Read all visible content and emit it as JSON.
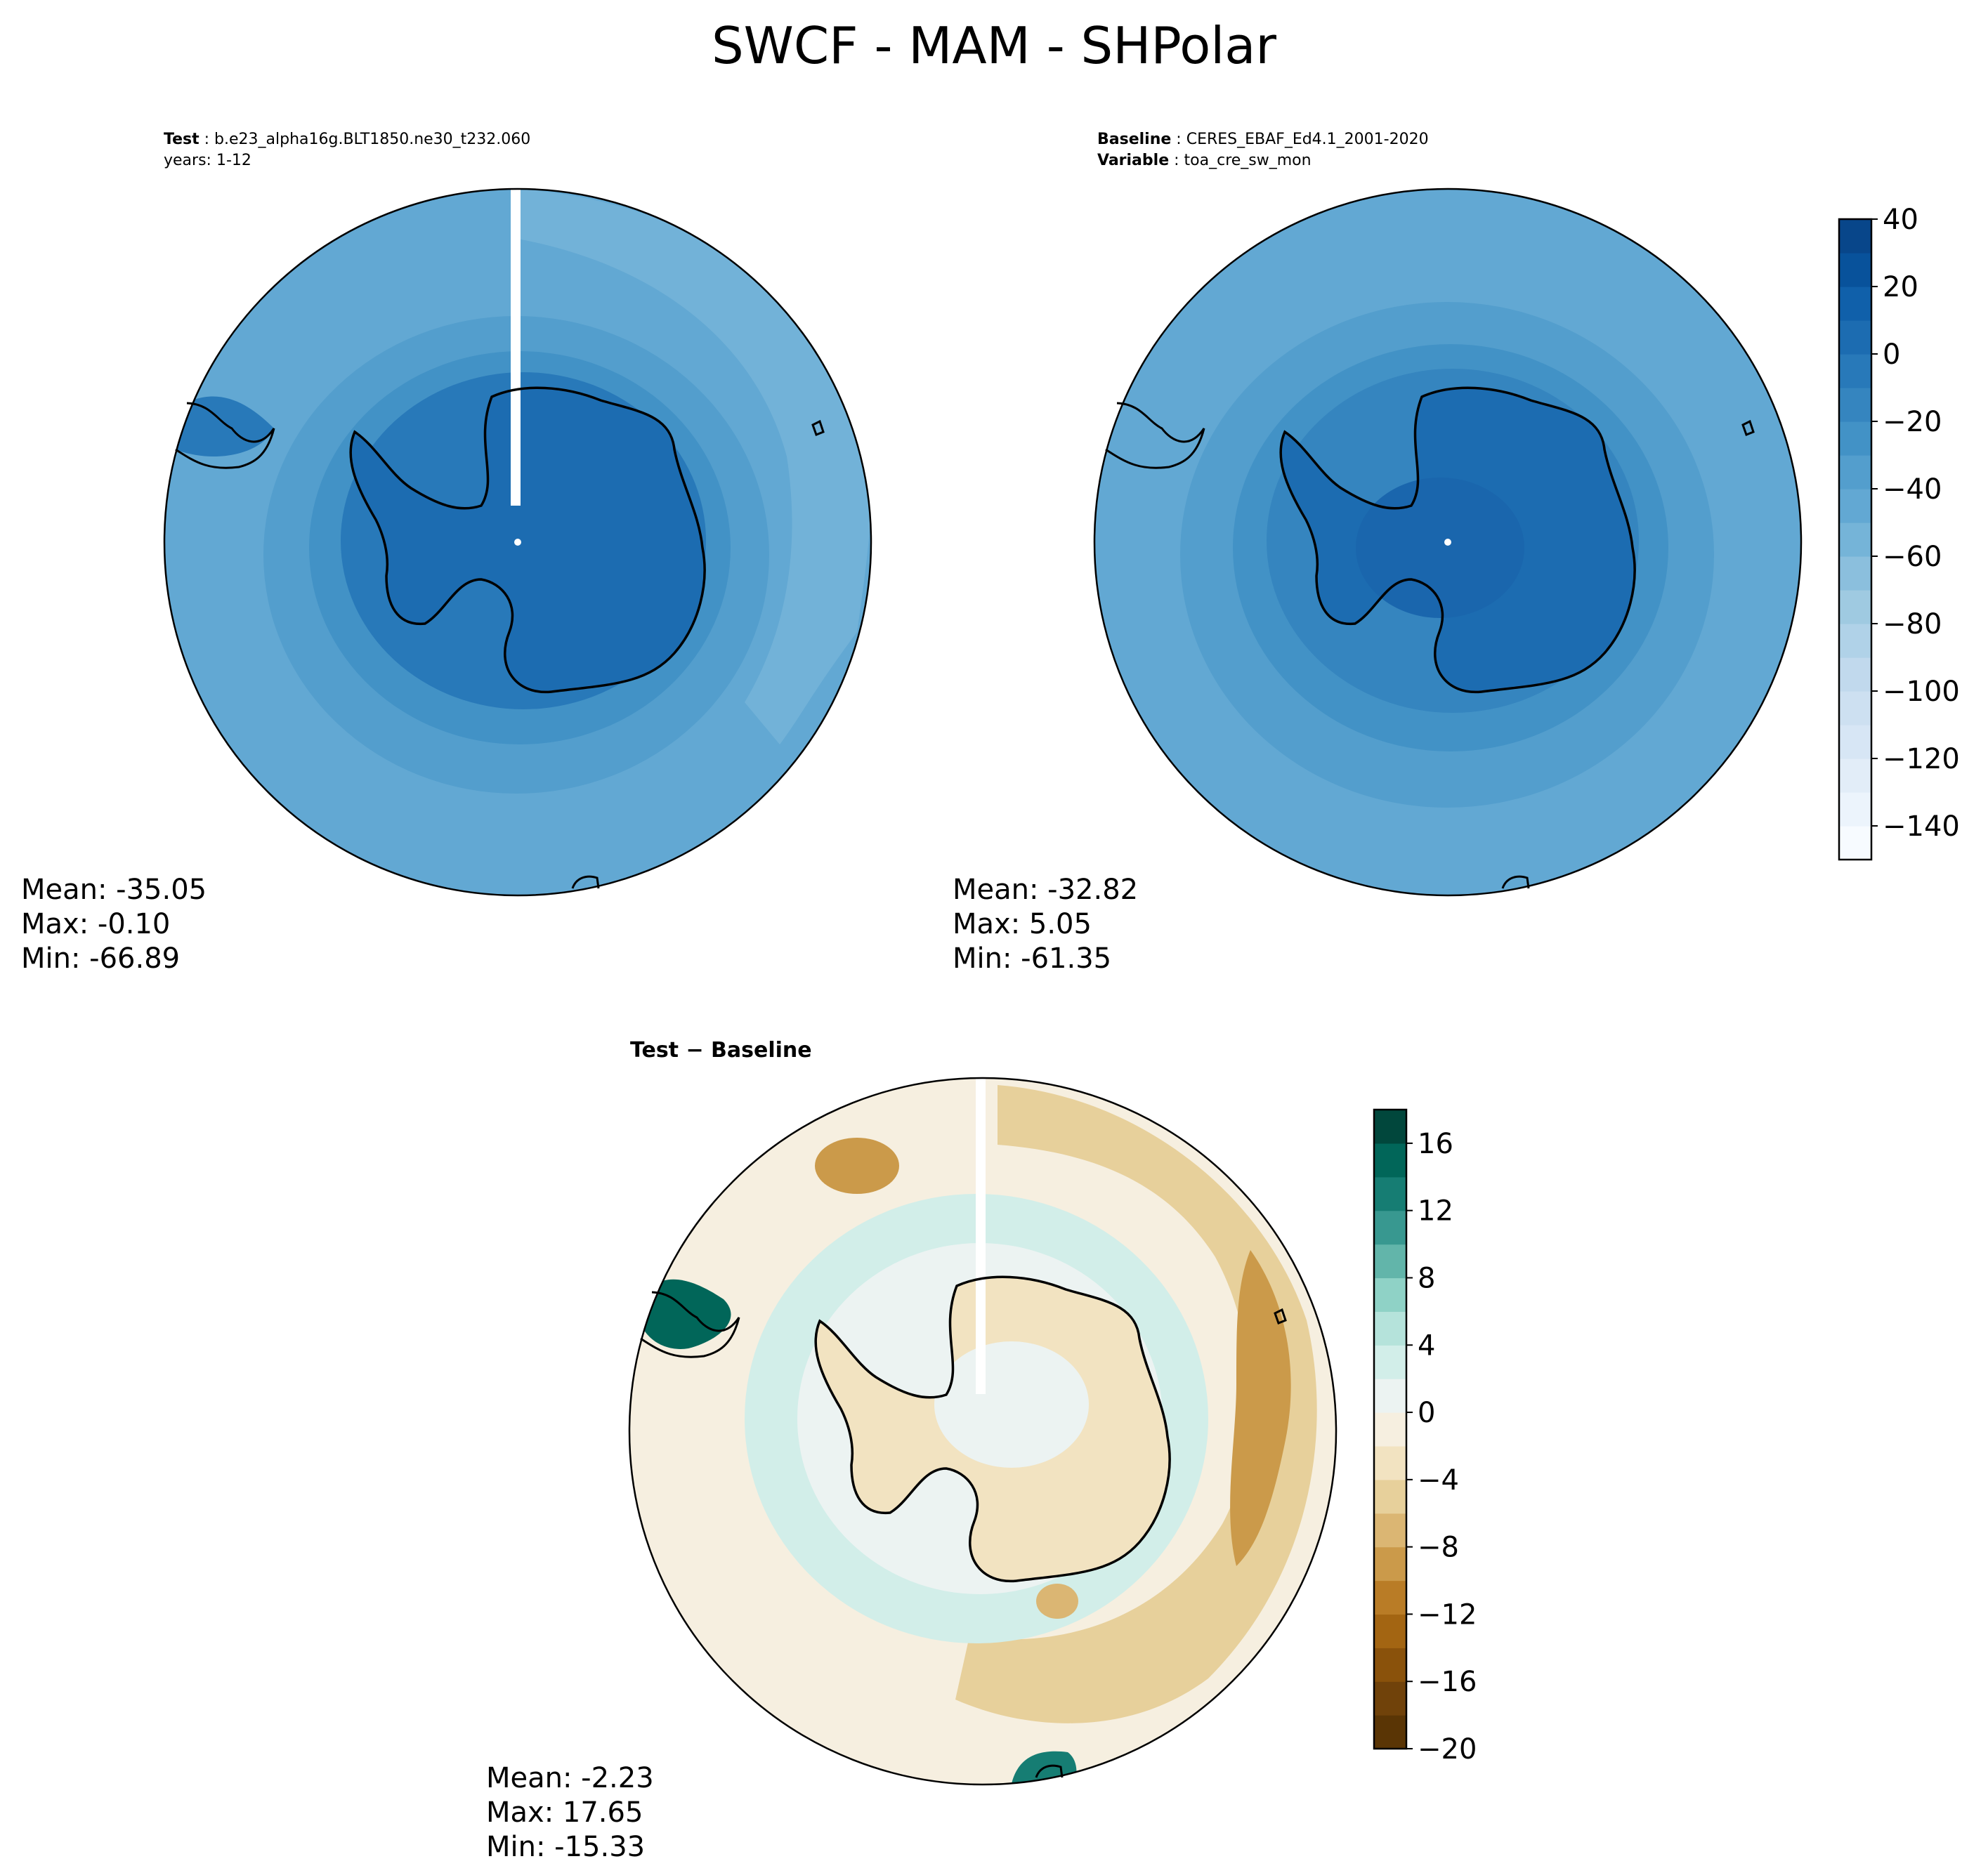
{
  "figure": {
    "title": "SWCF - MAM - SHPolar"
  },
  "panels": {
    "test": {
      "label": "Test",
      "case": "b.e23_alpha16g.BLT1850.ne30_t232.060",
      "years_line": "years: 1-12",
      "stats": {
        "mean": "Mean: -35.05",
        "max": "Max: -0.10",
        "min": "Min: -66.89"
      }
    },
    "baseline": {
      "label": "Baseline",
      "case": "CERES_EBAF_Ed4.1_2001-2020",
      "variable_label": "Variable",
      "variable": "toa_cre_sw_mon",
      "stats": {
        "mean": "Mean: -32.82",
        "max": "Max:  5.05",
        "min": "Min: -61.35"
      }
    },
    "diff": {
      "title": "Test − Baseline",
      "stats": {
        "mean": "Mean: -2.23",
        "max": "Max: 17.65",
        "min": "Min: -15.33"
      }
    }
  },
  "colorbars": {
    "main": {
      "range": [
        -150,
        40
      ],
      "step": 10,
      "ticks": [
        40,
        20,
        0,
        -20,
        -40,
        -60,
        -80,
        -100,
        -120,
        -140
      ],
      "tick_labels": [
        "40",
        "20",
        "0",
        "−20",
        "−40",
        "−60",
        "−80",
        "−100",
        "−120",
        "−140"
      ],
      "colors": [
        "#f7fbff",
        "#ecf4fc",
        "#e2edf8",
        "#d7e6f5",
        "#cde0f1",
        "#c1d9ed",
        "#b0d2e8",
        "#9fcae1",
        "#8bbfdd",
        "#75b4d8",
        "#62a8d3",
        "#539ecd",
        "#4292c6",
        "#3585bf",
        "#2879b9",
        "#1c6cb1",
        "#1060aa",
        "#08529b",
        "#08468a"
      ]
    },
    "diff": {
      "range": [
        -20,
        18
      ],
      "step": 2,
      "ticks": [
        16,
        12,
        8,
        4,
        0,
        -4,
        -8,
        -12,
        -16,
        -20
      ],
      "tick_labels": [
        "16",
        "12",
        "8",
        "4",
        "0",
        "−4",
        "−8",
        "−12",
        "−16",
        "−20"
      ],
      "colors": [
        "#5a3505",
        "#70420a",
        "#8a520b",
        "#a36512",
        "#b97c26",
        "#cb9a4a",
        "#dbb673",
        "#e7d09b",
        "#f2e3c1",
        "#f6efe0",
        "#ecf3f2",
        "#d2eee9",
        "#b5e3db",
        "#8fd2c6",
        "#62b5aa",
        "#389890",
        "#167d73",
        "#016659",
        "#01473c"
      ]
    },
    "value_colors": {
      "test": {
        "outer": "#62a8d3",
        "mid": "#4292c6",
        "inner": "#2879b9",
        "continent": "#1c6cb1"
      },
      "baseline": {
        "outer": "#62a8d3",
        "mid": "#539ecd",
        "inner": "#3585bf",
        "continent": "#1c6cb1"
      },
      "diff": {
        "background": "#f6efe0",
        "positive": "#d2eee9",
        "negative": "#e7d09b",
        "strong_positive": "#016659",
        "strong_negative": "#b97c26"
      }
    }
  }
}
